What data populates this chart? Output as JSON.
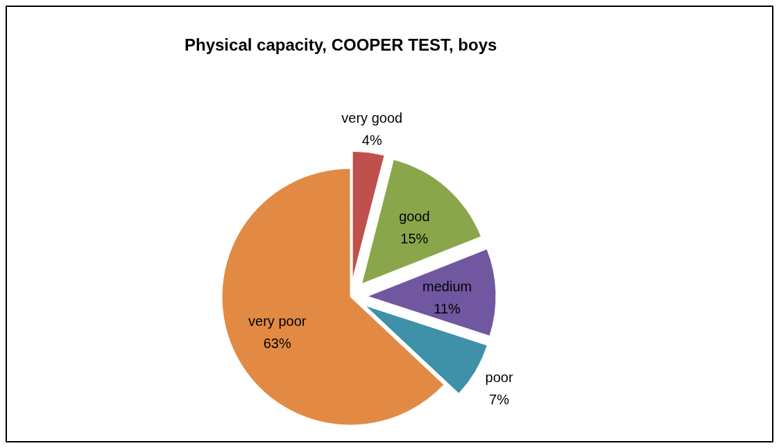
{
  "chart_data": {
    "type": "pie",
    "title": "Physical capacity, COOPER TEST, boys",
    "categories": [
      "very good",
      "good",
      "medium",
      "poor",
      "very poor"
    ],
    "values": [
      4,
      15,
      11,
      7,
      63
    ],
    "colors": [
      "#c0504d",
      "#8aa64b",
      "#7057a0",
      "#3e91a8",
      "#e28a43"
    ],
    "value_labels": [
      "4%",
      "15%",
      "11%",
      "7%",
      "63%"
    ],
    "legend": false
  }
}
